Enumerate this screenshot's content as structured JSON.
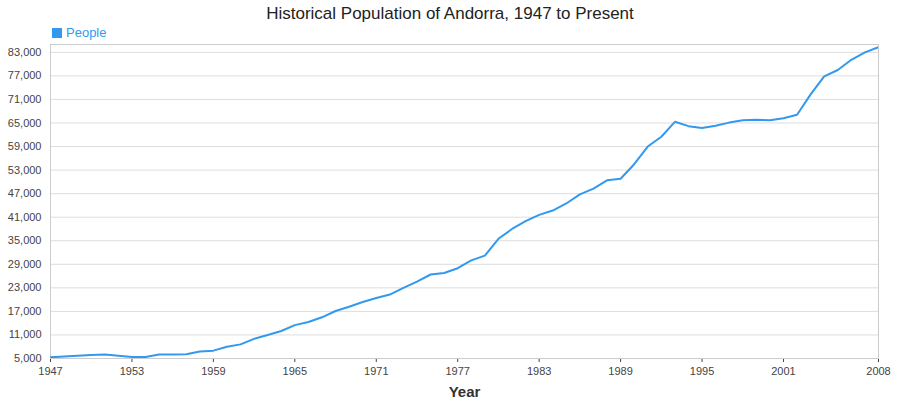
{
  "chart_data": {
    "type": "line",
    "title": "Historical Population of Andorra, 1947 to Present",
    "x_label": "Year",
    "x": [
      1947,
      1948,
      1949,
      1950,
      1951,
      1952,
      1953,
      1954,
      1955,
      1956,
      1957,
      1958,
      1959,
      1960,
      1961,
      1962,
      1963,
      1964,
      1965,
      1966,
      1967,
      1968,
      1969,
      1970,
      1971,
      1972,
      1973,
      1974,
      1975,
      1976,
      1977,
      1978,
      1979,
      1980,
      1981,
      1982,
      1983,
      1984,
      1985,
      1986,
      1987,
      1988,
      1989,
      1990,
      1991,
      1992,
      1993,
      1994,
      1995,
      1996,
      1997,
      1998,
      1999,
      2000,
      2001,
      2002,
      2003,
      2004,
      2005,
      2006,
      2007,
      2008
    ],
    "series": [
      {
        "name": "People",
        "color": "#3399ee",
        "values": [
          5300,
          5500,
          5700,
          5900,
          6000,
          5700,
          5400,
          5400,
          6000,
          6000,
          6100,
          6800,
          7000,
          8000,
          8600,
          10000,
          11000,
          12000,
          13500,
          14300,
          15500,
          17100,
          18200,
          19400,
          20400,
          21300,
          23000,
          24600,
          26400,
          26800,
          28000,
          30000,
          31200,
          35500,
          38000,
          40000,
          41600,
          42700,
          44500,
          46800,
          48300,
          50400,
          50800,
          54500,
          59000,
          61500,
          65300,
          64200,
          63700,
          64300,
          65100,
          65700,
          65800,
          65700,
          66200,
          67100,
          72300,
          76900,
          78500,
          81100,
          83000,
          84300
        ]
      }
    ],
    "xlim": [
      1947,
      2008
    ],
    "xticks": [
      1947,
      1953,
      1959,
      1965,
      1971,
      1977,
      1983,
      1989,
      1995,
      2001,
      2008
    ],
    "ylim": [
      5000,
      85000
    ],
    "yticks": [
      {
        "value": 5000,
        "label": "5,000"
      },
      {
        "value": 11000,
        "label": "11,000"
      },
      {
        "value": 17000,
        "label": "17,000"
      },
      {
        "value": 23000,
        "label": "23,000"
      },
      {
        "value": 29000,
        "label": "29,000"
      },
      {
        "value": 35000,
        "label": "35,000"
      },
      {
        "value": 41000,
        "label": "41,000"
      },
      {
        "value": 47000,
        "label": "47,000"
      },
      {
        "value": 53000,
        "label": "53,000"
      },
      {
        "value": 59000,
        "label": "59,000"
      },
      {
        "value": 65000,
        "label": "65,000"
      },
      {
        "value": 71000,
        "label": "71,000"
      },
      {
        "value": 77000,
        "label": "77,000"
      },
      {
        "value": 83000,
        "label": "83,000"
      }
    ],
    "grid": true,
    "legend": "top-left"
  }
}
